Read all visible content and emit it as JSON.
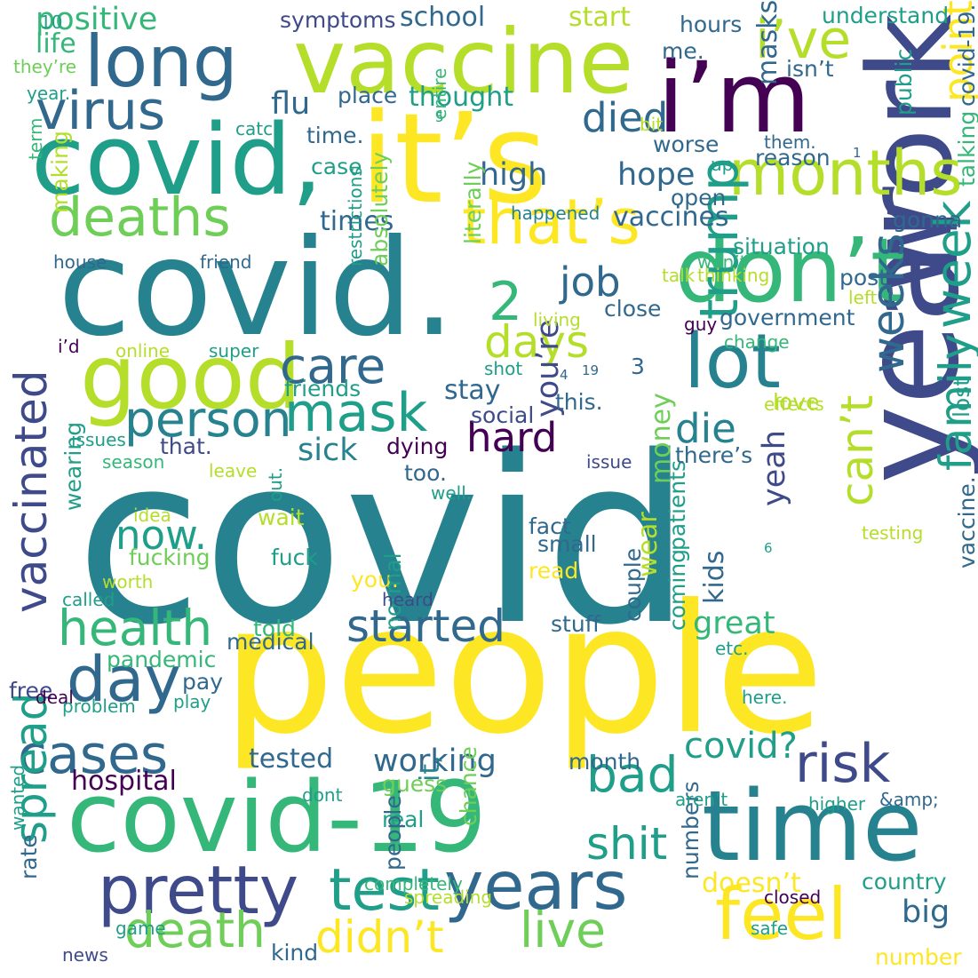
{
  "palette": {
    "purple": "#440154",
    "indigo": "#3e4a89",
    "slate": "#31688e",
    "teal": "#26828e",
    "sea": "#1f9e89",
    "green": "#35b779",
    "lime": "#6ece58",
    "yellowgreen": "#b5de2b",
    "yellow": "#fde725"
  },
  "words": [
    {
      "text": "covid",
      "color": "teal"
    },
    {
      "text": "people",
      "color": "yellow"
    },
    {
      "text": "covid.",
      "color": "teal"
    },
    {
      "text": "it’s",
      "color": "yellow"
    },
    {
      "text": "covid,",
      "color": "sea"
    },
    {
      "text": "covid-19",
      "color": "green"
    },
    {
      "text": "vaccine",
      "color": "yellowgreen"
    },
    {
      "text": "i’m",
      "color": "purple"
    },
    {
      "text": "year",
      "color": "indigo"
    },
    {
      "text": "work",
      "color": "indigo"
    },
    {
      "text": "time",
      "color": "teal"
    },
    {
      "text": "don’t",
      "color": "green"
    },
    {
      "text": "good",
      "color": "yellowgreen"
    },
    {
      "text": "long",
      "color": "slate"
    },
    {
      "text": "lot",
      "color": "teal"
    },
    {
      "text": "months",
      "color": "yellowgreen"
    },
    {
      "text": "pretty",
      "color": "indigo"
    },
    {
      "text": "feel",
      "color": "yellow"
    },
    {
      "text": "years",
      "color": "slate"
    },
    {
      "text": "virus",
      "color": "slate"
    },
    {
      "text": "deaths",
      "color": "lime"
    },
    {
      "text": "that’s",
      "color": "yellow"
    },
    {
      "text": "day",
      "color": "slate"
    },
    {
      "text": "cases",
      "color": "slate"
    },
    {
      "text": "test",
      "color": "sea"
    },
    {
      "text": "risk",
      "color": "indigo"
    },
    {
      "text": "death",
      "color": "lime"
    },
    {
      "text": "live",
      "color": "lime"
    },
    {
      "text": "i’ve",
      "color": "yellowgreen"
    },
    {
      "text": "mask",
      "color": "sea"
    },
    {
      "text": "person",
      "color": "teal"
    },
    {
      "text": "care",
      "color": "slate"
    },
    {
      "text": "vaccinated",
      "color": "indigo"
    },
    {
      "text": "health",
      "color": "green"
    },
    {
      "text": "started",
      "color": "slate"
    },
    {
      "text": "didn’t",
      "color": "yellow"
    },
    {
      "text": "bad",
      "color": "sea"
    },
    {
      "text": "shit",
      "color": "sea"
    },
    {
      "text": "trump",
      "color": "sea"
    },
    {
      "text": "week",
      "color": "sea"
    },
    {
      "text": "family",
      "color": "sea"
    },
    {
      "text": "can’t",
      "color": "yellowgreen"
    },
    {
      "text": "weeks",
      "color": "slate"
    },
    {
      "text": "spread",
      "color": "sea"
    },
    {
      "text": "2",
      "color": "green"
    },
    {
      "text": "days",
      "color": "yellowgreen"
    },
    {
      "text": "job",
      "color": "slate"
    },
    {
      "text": "died",
      "color": "slate"
    },
    {
      "text": "point",
      "color": "yellow"
    },
    {
      "text": "now.",
      "color": "sea"
    },
    {
      "text": "hard",
      "color": "purple"
    },
    {
      "text": "die",
      "color": "teal"
    },
    {
      "text": "covid?",
      "color": "sea"
    },
    {
      "text": "working",
      "color": "slate"
    },
    {
      "text": "hospital",
      "color": "purple"
    },
    {
      "text": "doesn’t",
      "color": "yellow"
    },
    {
      "text": "big",
      "color": "slate"
    },
    {
      "text": "great",
      "color": "green"
    },
    {
      "text": "sick",
      "color": "teal"
    },
    {
      "text": "high",
      "color": "slate"
    },
    {
      "text": "hope",
      "color": "slate"
    },
    {
      "text": "positive",
      "color": "green"
    },
    {
      "text": "school",
      "color": "slate"
    },
    {
      "text": "thought",
      "color": "sea"
    },
    {
      "text": "vaccines",
      "color": "slate"
    },
    {
      "text": "times",
      "color": "slate"
    },
    {
      "text": "flu",
      "color": "slate"
    },
    {
      "text": "masks",
      "color": "slate"
    },
    {
      "text": "life",
      "color": "green"
    },
    {
      "text": "start",
      "color": "yellowgreen"
    },
    {
      "text": "stay",
      "color": "slate"
    },
    {
      "text": "you’re",
      "color": "indigo"
    },
    {
      "text": "money",
      "color": "lime"
    },
    {
      "text": "yeah",
      "color": "indigo"
    },
    {
      "text": "wear",
      "color": "yellowgreen"
    },
    {
      "text": "kids",
      "color": "slate"
    },
    {
      "text": "tested",
      "color": "slate"
    },
    {
      "text": "it,",
      "color": "teal"
    },
    {
      "text": "country",
      "color": "sea"
    },
    {
      "text": "understand",
      "color": "sea"
    },
    {
      "text": "symptoms",
      "color": "indigo"
    },
    {
      "text": "lost",
      "color": "sea"
    },
    {
      "text": "dying",
      "color": "purple"
    },
    {
      "text": "that.",
      "color": "indigo"
    },
    {
      "text": "social",
      "color": "indigo"
    },
    {
      "text": "friends",
      "color": "sea"
    },
    {
      "text": "literally",
      "color": "lime"
    },
    {
      "text": "making",
      "color": "yellowgreen"
    },
    {
      "text": "government",
      "color": "slate"
    },
    {
      "text": "situation",
      "color": "sea"
    },
    {
      "text": "talking",
      "color": "green"
    },
    {
      "text": "post",
      "color": "slate"
    },
    {
      "text": "close",
      "color": "slate"
    },
    {
      "text": "open",
      "color": "slate"
    },
    {
      "text": "hours",
      "color": "slate"
    },
    {
      "text": "gonna",
      "color": "slate"
    },
    {
      "text": "reason",
      "color": "slate"
    },
    {
      "text": "isn’t",
      "color": "slate"
    },
    {
      "text": "worse",
      "color": "slate"
    },
    {
      "text": "place",
      "color": "slate"
    },
    {
      "text": "time.",
      "color": "slate"
    },
    {
      "text": "case",
      "color": "sea"
    },
    {
      "text": "public",
      "color": "sea"
    },
    {
      "text": "covid-19.",
      "color": "slate"
    },
    {
      "text": "me.",
      "color": "slate"
    },
    {
      "text": "pandemic",
      "color": "green"
    },
    {
      "text": "medical",
      "color": "slate"
    },
    {
      "text": "told",
      "color": "green"
    },
    {
      "text": "pay",
      "color": "slate"
    },
    {
      "text": "free",
      "color": "indigo"
    },
    {
      "text": "fucking",
      "color": "lime"
    },
    {
      "text": "wait",
      "color": "yellowgreen"
    },
    {
      "text": "fuck",
      "color": "sea"
    },
    {
      "text": "wearing",
      "color": "sea"
    },
    {
      "text": "you.",
      "color": "yellow"
    },
    {
      "text": "normal",
      "color": "sea"
    },
    {
      "text": "fact",
      "color": "slate"
    },
    {
      "text": "small",
      "color": "slate"
    },
    {
      "text": "read",
      "color": "yellow"
    },
    {
      "text": "stuff",
      "color": "slate"
    },
    {
      "text": "patients",
      "color": "sea"
    },
    {
      "text": "couple",
      "color": "slate"
    },
    {
      "text": "coming",
      "color": "sea"
    },
    {
      "text": "month",
      "color": "slate"
    },
    {
      "text": "guess",
      "color": "lime"
    },
    {
      "text": "chance",
      "color": "lime"
    },
    {
      "text": "real",
      "color": "sea"
    },
    {
      "text": "people.",
      "color": "slate"
    },
    {
      "text": "rate",
      "color": "slate"
    },
    {
      "text": "kind",
      "color": "slate"
    },
    {
      "text": "numbers",
      "color": "slate"
    },
    {
      "text": "number",
      "color": "yellow"
    },
    {
      "text": "too.",
      "color": "slate"
    },
    {
      "text": "there’s",
      "color": "slate"
    },
    {
      "text": "love",
      "color": "yellowgreen"
    },
    {
      "text": "this.",
      "color": "slate"
    },
    {
      "text": "vaccine.",
      "color": "slate"
    },
    {
      "text": "absolutely",
      "color": "lime"
    },
    {
      "text": "3",
      "color": "slate"
    },
    {
      "text": "4",
      "color": "slate"
    },
    {
      "text": "19",
      "color": "slate"
    },
    {
      "text": "6",
      "color": "sea"
    },
    {
      "text": "1",
      "color": "slate"
    },
    {
      "text": "5",
      "color": "sea"
    },
    {
      "text": "10",
      "color": "sea"
    },
    {
      "text": "they’re",
      "color": "lime"
    },
    {
      "text": "year.",
      "color": "sea"
    },
    {
      "text": "catch",
      "color": "sea"
    },
    {
      "text": "bit",
      "color": "yellowgreen"
    },
    {
      "text": "them.",
      "color": "slate"
    },
    {
      "text": "up.",
      "color": "sea"
    },
    {
      "text": "entire",
      "color": "green"
    },
    {
      "text": "term",
      "color": "green"
    },
    {
      "text": "happened",
      "color": "teal"
    },
    {
      "text": "house",
      "color": "slate"
    },
    {
      "text": "friend",
      "color": "slate"
    },
    {
      "text": "restrictions",
      "color": "sea"
    },
    {
      "text": "won’t",
      "color": "green"
    },
    {
      "text": "thinking",
      "color": "yellowgreen"
    },
    {
      "text": "talk",
      "color": "yellowgreen"
    },
    {
      "text": "left",
      "color": "yellowgreen"
    },
    {
      "text": "guy",
      "color": "purple"
    },
    {
      "text": "living",
      "color": "yellowgreen"
    },
    {
      "text": "i’d",
      "color": "purple"
    },
    {
      "text": "online",
      "color": "yellowgreen"
    },
    {
      "text": "super",
      "color": "sea"
    },
    {
      "text": "change",
      "color": "green"
    },
    {
      "text": "shot",
      "color": "sea"
    },
    {
      "text": "effects",
      "color": "yellowgreen"
    },
    {
      "text": "issues",
      "color": "sea"
    },
    {
      "text": "season",
      "color": "green"
    },
    {
      "text": "leave",
      "color": "yellowgreen"
    },
    {
      "text": "well.",
      "color": "sea"
    },
    {
      "text": "issue",
      "color": "indigo"
    },
    {
      "text": "idea",
      "color": "yellowgreen"
    },
    {
      "text": "out.",
      "color": "sea"
    },
    {
      "text": "testing",
      "color": "yellowgreen"
    },
    {
      "text": "worth",
      "color": "yellowgreen"
    },
    {
      "text": "called",
      "color": "sea"
    },
    {
      "text": "heard",
      "color": "indigo"
    },
    {
      "text": "etc.",
      "color": "sea"
    },
    {
      "text": "deal",
      "color": "purple"
    },
    {
      "text": "problem",
      "color": "sea"
    },
    {
      "text": "play",
      "color": "sea"
    },
    {
      "text": "here.",
      "color": "sea"
    },
    {
      "text": "dont",
      "color": "sea"
    },
    {
      "text": "aren’t",
      "color": "sea"
    },
    {
      "text": "higher",
      "color": "sea"
    },
    {
      "text": "&amp;",
      "color": "slate"
    },
    {
      "text": "wanted",
      "color": "sea"
    },
    {
      "text": "completely",
      "color": "green"
    },
    {
      "text": "spreading",
      "color": "yellowgreen"
    },
    {
      "text": "closed",
      "color": "purple"
    },
    {
      "text": "safe",
      "color": "sea"
    },
    {
      "text": "game",
      "color": "sea"
    },
    {
      "text": "news",
      "color": "indigo"
    },
    {
      "text": "agree",
      "color": "green"
    },
    {
      "text": "early",
      "color": "sea"
    }
  ]
}
